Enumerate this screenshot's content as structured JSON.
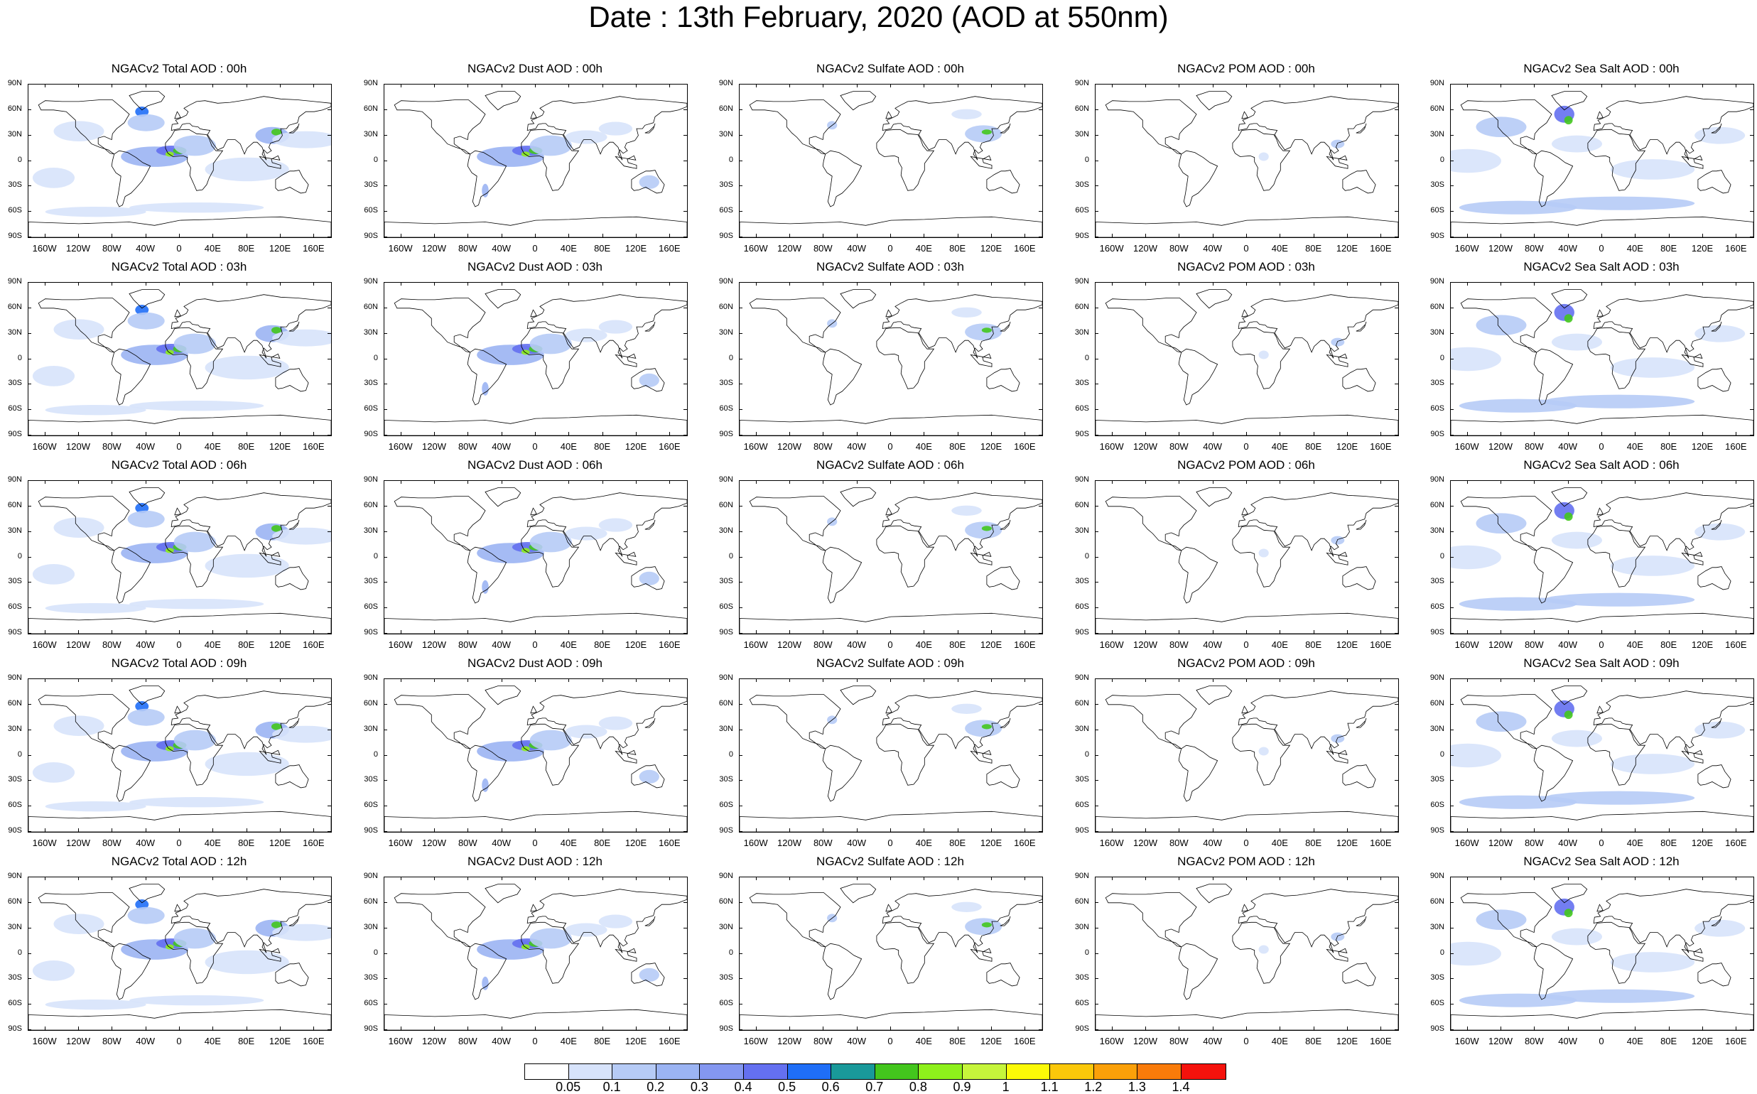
{
  "title": "Date : 13th February, 2020 (AOD at 550nm)",
  "columns": [
    {
      "species": "total",
      "titles": [
        "NGACv2 Total AOD : 00h",
        "NGACv2 Total AOD : 03h",
        "NGACv2 Total AOD : 06h",
        "NGACv2 Total AOD : 09h",
        "NGACv2 Total AOD  : 12h"
      ]
    },
    {
      "species": "dust",
      "titles": [
        "NGACv2 Dust AOD : 00h",
        "NGACv2 Dust AOD : 03h",
        "NGACv2 Dust AOD : 06h",
        "NGACv2 Dust AOD : 09h",
        "NGACv2 Dust AOD : 12h"
      ]
    },
    {
      "species": "sulfate",
      "titles": [
        "NGACv2 Sulfate AOD : 00h",
        "NGACv2 Sulfate AOD : 03h",
        "NGACv2 Sulfate AOD : 06h",
        "NGACv2 Sulfate AOD : 09h",
        "NGACv2 Sulfate AOD : 12h"
      ]
    },
    {
      "species": "pom",
      "titles": [
        "NGACv2 POM AOD : 00h",
        "NGACv2 POM AOD : 03h",
        "NGACv2 POM AOD : 06h",
        "NGACv2 POM AOD : 09h",
        "NGACv2 POM  AOD : 12h"
      ]
    },
    {
      "species": "seasalt",
      "titles": [
        "NGACv2 Sea Salt AOD : 00h",
        "NGACv2 Sea Salt AOD : 03h",
        "NGACv2 Sea Salt AOD : 06h",
        "NGACv2 Sea Salt  AOD : 09h",
        "NGACv2 Sea Salt AOD : 12h"
      ]
    }
  ],
  "lat_labels": [
    "90N",
    "60N",
    "30N",
    "0",
    "30S",
    "60S",
    "90S"
  ],
  "lon_labels": [
    "160W",
    "120W",
    "80W",
    "40W",
    "0",
    "40E",
    "80E",
    "120E",
    "160E"
  ],
  "colorbar": {
    "labels": [
      "0.05",
      "0.1",
      "0.2",
      "0.3",
      "0.4",
      "0.5",
      "0.6",
      "0.7",
      "0.8",
      "0.9",
      "1",
      "1.1",
      "1.2",
      "1.3",
      "1.4"
    ],
    "colors": [
      "#ffffff",
      "#d7e3fb",
      "#b6cbf6",
      "#9bb4f3",
      "#8497f0",
      "#6470f0",
      "#1f6ef7",
      "#19999a",
      "#43c61d",
      "#8ef01b",
      "#c6f53b",
      "#fcfa07",
      "#fbc80a",
      "#fba009",
      "#f97b0a",
      "#f5120c"
    ]
  }
}
